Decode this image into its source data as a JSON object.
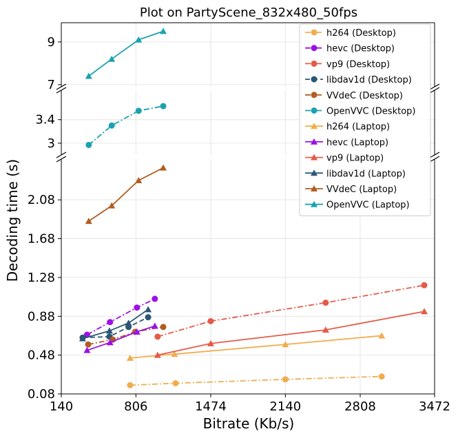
{
  "chart_data": {
    "type": "line",
    "title": "Plot on PartyScene_832x480_50fps",
    "xlabel": "Bitrate (Kb/s)",
    "ylabel": "Decoding time (s)",
    "xlim": [
      140,
      3472
    ],
    "x_ticks": [
      140,
      806,
      1474,
      2140,
      2808,
      3472
    ],
    "panels": [
      {
        "name": "top",
        "ylim": [
          6.9,
          9.9
        ],
        "y_ticks": [
          7,
          9
        ]
      },
      {
        "name": "middle",
        "ylim": [
          2.8,
          3.9
        ],
        "y_ticks": [
          3,
          3.4
        ]
      },
      {
        "name": "bottom",
        "ylim": [
          0.08,
          2.5
        ],
        "y_ticks": [
          0.08,
          0.48,
          0.88,
          1.28,
          1.68,
          2.08
        ]
      }
    ],
    "legend_position": "upper right",
    "grid": true,
    "series": [
      {
        "name": "h264 (Desktop)",
        "color": "#f0ad4e",
        "dash": "dashdot",
        "marker": "circle",
        "panel": "bottom",
        "x": [
          754,
          1160,
          2140,
          3000
        ],
        "y": [
          0.17,
          0.19,
          0.23,
          0.26
        ]
      },
      {
        "name": "hevc (Desktop)",
        "color": "#9b10e6",
        "dash": "dashdot",
        "marker": "circle",
        "panel": "bottom",
        "x": [
          370,
          575,
          815,
          975
        ],
        "y": [
          0.69,
          0.82,
          0.97,
          1.06
        ]
      },
      {
        "name": "vp9 (Desktop)",
        "color": "#e45b47",
        "dash": "dashdot",
        "marker": "circle",
        "panel": "bottom",
        "x": [
          1000,
          1474,
          2500,
          3380
        ],
        "y": [
          0.67,
          0.83,
          1.02,
          1.2
        ]
      },
      {
        "name": "libdav1d (Desktop)",
        "color": "#2b5676",
        "dash": "dashed",
        "marker": "circle",
        "panel": "bottom",
        "x": [
          330,
          570,
          740,
          915
        ],
        "y": [
          0.66,
          0.67,
          0.77,
          0.87
        ]
      },
      {
        "name": "VVdeC (Desktop)",
        "color": "#b05d21",
        "dash": "dashdot",
        "marker": "circle",
        "panel": "bottom",
        "x": [
          380,
          600,
          800,
          1050
        ],
        "y": [
          0.59,
          0.64,
          0.72,
          0.77
        ]
      },
      {
        "name": "OpenVVC (Desktop)",
        "color": "#1aa3ae",
        "dash": "dashdot",
        "marker": "circle",
        "panel": "middle",
        "x": [
          385,
          590,
          830,
          1050
        ],
        "y": [
          2.97,
          3.3,
          3.55,
          3.63
        ]
      },
      {
        "name": "h264 (Laptop)",
        "color": "#f0ad4e",
        "dash": "solid",
        "marker": "triangle",
        "panel": "bottom",
        "x": [
          754,
          1150,
          2140,
          3000
        ],
        "y": [
          0.45,
          0.49,
          0.59,
          0.68
        ]
      },
      {
        "name": "hevc (Laptop)",
        "color": "#9b10e6",
        "dash": "solid",
        "marker": "triangle",
        "panel": "bottom",
        "x": [
          370,
          575,
          815,
          975
        ],
        "y": [
          0.53,
          0.61,
          0.72,
          0.78
        ]
      },
      {
        "name": "vp9 (Laptop)",
        "color": "#e45b47",
        "dash": "solid",
        "marker": "triangle",
        "panel": "bottom",
        "x": [
          1000,
          1474,
          2500,
          3380
        ],
        "y": [
          0.48,
          0.6,
          0.74,
          0.93
        ]
      },
      {
        "name": "libdav1d (Laptop)",
        "color": "#2b5676",
        "dash": "solid",
        "marker": "triangle",
        "panel": "bottom",
        "x": [
          330,
          570,
          740,
          915
        ],
        "y": [
          0.65,
          0.73,
          0.81,
          0.95
        ]
      },
      {
        "name": "VVdeC (Laptop)",
        "color": "#b05d21",
        "dash": "solid",
        "marker": "triangle",
        "panel": "bottom",
        "x": [
          385,
          590,
          830,
          1050
        ],
        "y": [
          1.86,
          2.02,
          2.28,
          2.41
        ]
      },
      {
        "name": "OpenVVC (Laptop)",
        "color": "#1aa3ae",
        "dash": "solid",
        "marker": "triangle",
        "panel": "top",
        "x": [
          385,
          590,
          830,
          1050
        ],
        "y": [
          7.4,
          8.2,
          9.1,
          9.5
        ]
      }
    ]
  }
}
